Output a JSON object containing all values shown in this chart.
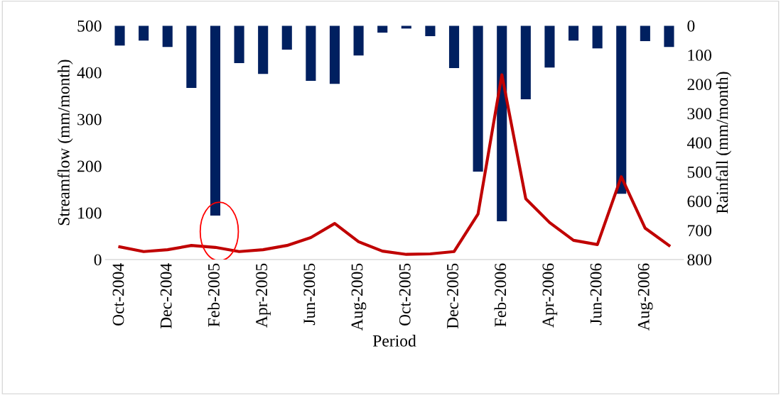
{
  "chart_data": {
    "type": "line",
    "xlabel": "Period",
    "ylabel": "Streamflow (mm/month)",
    "y2label": "Rainfall (mm/month)",
    "categories": [
      "Oct-2004",
      null,
      "Dec-2004",
      null,
      "Feb-2005",
      null,
      "Apr-2005",
      null,
      "Jun-2005",
      null,
      "Aug-2005",
      null,
      "Oct-2005",
      null,
      "Dec-2005",
      null,
      "Feb-2006",
      null,
      "Apr-2006",
      null,
      "Jun-2006",
      null,
      "Aug-2006",
      null
    ],
    "series": [
      {
        "type": "bar",
        "axis": "y2",
        "color": "#002060",
        "values": [
          68,
          51,
          73,
          213,
          650,
          128,
          165,
          82,
          189,
          199,
          102,
          24,
          10,
          36,
          145,
          499,
          669,
          252,
          143,
          51,
          78,
          575,
          53,
          73
        ]
      },
      {
        "color": "#c00000",
        "values": [
          27,
          17,
          21,
          30,
          26,
          17,
          21,
          30,
          47,
          77,
          38,
          18,
          11,
          12,
          17,
          97,
          395,
          130,
          79,
          41,
          32,
          177,
          67,
          30
        ]
      }
    ],
    "ylim": [
      0,
      500
    ],
    "yticks": [
      0,
      100,
      200,
      300,
      400,
      500
    ],
    "y2lim": [
      800,
      0
    ],
    "y2ticks": [
      0,
      100,
      200,
      300,
      400,
      500,
      600,
      700,
      800
    ],
    "grid": false,
    "legend": false
  }
}
